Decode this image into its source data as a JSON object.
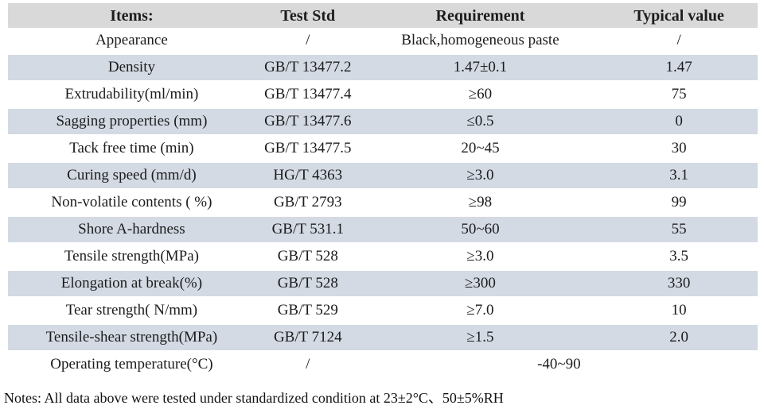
{
  "table": {
    "columns": [
      "Items:",
      "Test Std",
      "Requirement",
      "Typical value"
    ],
    "rows": [
      {
        "item": "Appearance",
        "std": "/",
        "req": "Black,homogeneous paste",
        "typ": "/"
      },
      {
        "item": "Density",
        "std": "GB/T 13477.2",
        "req": "1.47±0.1",
        "typ": "1.47"
      },
      {
        "item": "Extrudability(ml/min)",
        "std": "GB/T 13477.4",
        "req": "≥60",
        "typ": "75"
      },
      {
        "item": "Sagging properties (mm)",
        "std": "GB/T 13477.6",
        "req": "≤0.5",
        "typ": "0"
      },
      {
        "item": "Tack free time (min)",
        "std": "GB/T 13477.5",
        "req": "20~45",
        "typ": "30"
      },
      {
        "item": "Curing speed (mm/d)",
        "std": "HG/T 4363",
        "req": "≥3.0",
        "typ": "3.1"
      },
      {
        "item": "Non-volatile contents ( %)",
        "std": "GB/T 2793",
        "req": "≥98",
        "typ": "99"
      },
      {
        "item": "Shore A-hardness",
        "std": "GB/T 531.1",
        "req": "50~60",
        "typ": "55"
      },
      {
        "item": "Tensile strength(MPa)",
        "std": "GB/T 528",
        "req": "≥3.0",
        "typ": "3.5"
      },
      {
        "item": "Elongation at break(%)",
        "std": "GB/T 528",
        "req": "≥300",
        "typ": "330"
      },
      {
        "item": "Tear strength( N/mm)",
        "std": "GB/T 529",
        "req": "≥7.0",
        "typ": "10"
      },
      {
        "item": "Tensile-shear strength(MPa)",
        "std": "GB/T 7124",
        "req": "≥1.5",
        "typ": "2.0"
      },
      {
        "item": "Operating temperature(°C)",
        "std": "/",
        "req": "-40~90",
        "typ": null
      }
    ]
  },
  "notes": "Notes: All data above were tested under standardized condition at 23±2°C、50±5%RH",
  "colors": {
    "header_bg": "#d9d9d9",
    "stripe_bg": "#d3dae4",
    "text": "#1c1c1c"
  }
}
